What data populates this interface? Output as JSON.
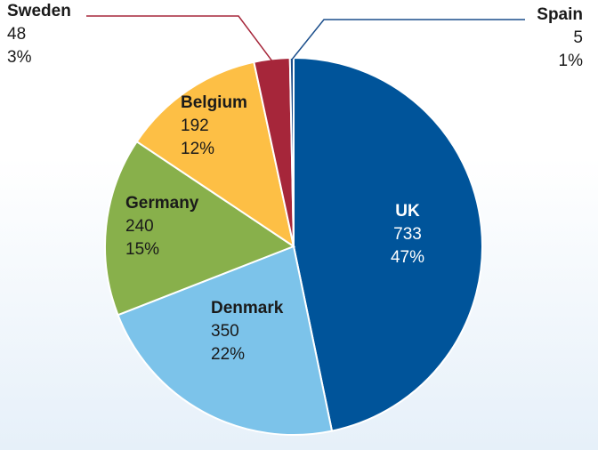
{
  "chart_data": {
    "type": "pie",
    "title": "",
    "slices": [
      {
        "label": "UK",
        "value": 733,
        "percent": "47%",
        "color": "#00549a"
      },
      {
        "label": "Denmark",
        "value": 350,
        "percent": "22%",
        "color": "#7cc3ea"
      },
      {
        "label": "Germany",
        "value": 240,
        "percent": "15%",
        "color": "#88b04b"
      },
      {
        "label": "Belgium",
        "value": 192,
        "percent": "12%",
        "color": "#fdbf45"
      },
      {
        "label": "Sweden",
        "value": 48,
        "percent": "3%",
        "color": "#a6263a"
      },
      {
        "label": "Spain",
        "value": 5,
        "percent": "1%",
        "color": "#1c4f8c"
      }
    ]
  }
}
